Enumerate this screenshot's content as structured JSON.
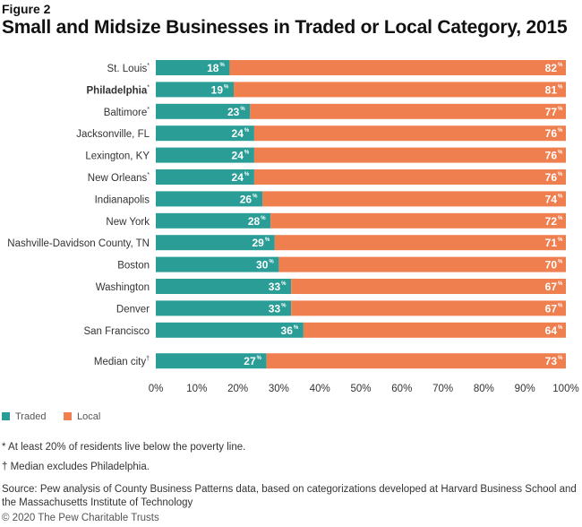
{
  "figure_label": "Figure 2",
  "title": "Small and Midsize Businesses in Traded or Local Category, 2015",
  "colors": {
    "traded": "#2a9d97",
    "local": "#f07f4f",
    "bar_label": "#ffffff"
  },
  "legend": [
    {
      "label": "Traded",
      "color": "#2a9d97"
    },
    {
      "label": "Local",
      "color": "#f07f4f"
    }
  ],
  "notes": [
    "* At least 20% of residents live below the poverty line.",
    "† Median excludes Philadelphia."
  ],
  "source": "Source: Pew analysis of County Business Patterns data, based on categorizations developed at Harvard Business School and the Massachusetts Institute of Technology",
  "copyright": "© 2020 The Pew Charitable Trusts",
  "chart_data": {
    "type": "bar",
    "orientation": "horizontal",
    "stacked": true,
    "categories": [
      "St. Louis*",
      "Philadelphia*",
      "Baltimore*",
      "Jacksonville, FL",
      "Lexington, KY",
      "New Orleans*",
      "Indianapolis",
      "New York",
      "Nashville-Davidson County, TN",
      "Boston",
      "Washington",
      "Denver",
      "San Francisco",
      "Median city†"
    ],
    "highlight_category": "Philadelphia*",
    "series": [
      {
        "name": "Traded",
        "values": [
          18,
          19,
          23,
          24,
          24,
          24,
          26,
          28,
          29,
          30,
          33,
          33,
          36,
          27
        ]
      },
      {
        "name": "Local",
        "values": [
          82,
          81,
          77,
          76,
          76,
          76,
          74,
          72,
          71,
          70,
          67,
          67,
          64,
          73
        ]
      }
    ],
    "value_suffix": "%",
    "x_ticks": [
      "0%",
      "10%",
      "20%",
      "30%",
      "40%",
      "50%",
      "60%",
      "70%",
      "80%",
      "90%",
      "100%"
    ],
    "xlim": [
      0,
      100
    ],
    "legend_position": "bottom-left",
    "grid": false
  }
}
